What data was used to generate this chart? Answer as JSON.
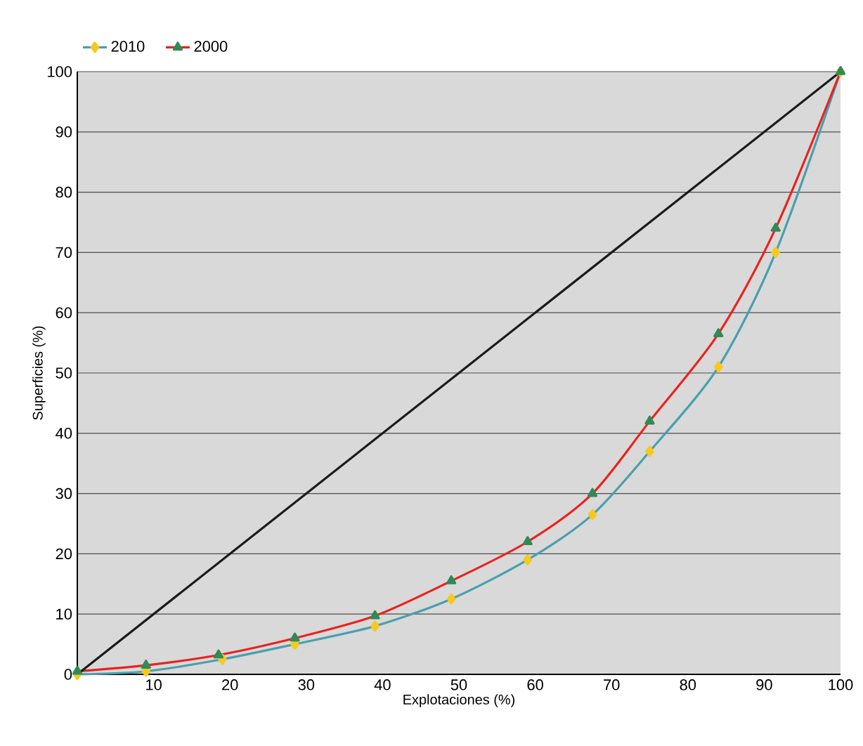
{
  "chart_data": {
    "type": "line",
    "xlabel": "Explotaciones (%)",
    "ylabel": "Superficies (%)",
    "xlim": [
      0,
      100
    ],
    "ylim": [
      0,
      100
    ],
    "xticks": [
      10,
      20,
      30,
      40,
      50,
      60,
      70,
      80,
      90,
      100
    ],
    "yticks": [
      0,
      10,
      20,
      30,
      40,
      50,
      60,
      70,
      80,
      90,
      100
    ],
    "grid": "y",
    "legend": "top left",
    "series": [
      {
        "name": "2010",
        "color": "#4a9fae",
        "marker": "diamond",
        "x": [
          0,
          9,
          19,
          28.5,
          39,
          49,
          59,
          67.5,
          75,
          84,
          91.5,
          100
        ],
        "values": [
          0,
          0.5,
          2.5,
          5,
          8,
          12.5,
          19,
          26.5,
          37,
          51,
          70,
          100
        ]
      },
      {
        "name": "2000",
        "color": "#e8231f",
        "marker": "triangle",
        "x": [
          0,
          9,
          18.5,
          28.5,
          39,
          49,
          59,
          67.5,
          75,
          84,
          91.5,
          100
        ],
        "values": [
          0.5,
          1.5,
          3.2,
          6,
          9.7,
          15.5,
          22,
          30,
          42,
          56.5,
          74,
          100
        ]
      },
      {
        "color": "#1a1a1a",
        "marker": "none",
        "x": [
          0,
          100
        ],
        "values": [
          0,
          100
        ]
      }
    ]
  }
}
